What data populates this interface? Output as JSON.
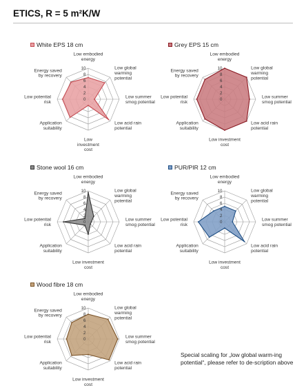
{
  "page": {
    "title": "ETICS, R = 5 m²K/W",
    "note": "Special scaling for „low global warm-ing potential“, please refer to de-scription above"
  },
  "chart_data": [
    {
      "type": "radar",
      "title": "White EPS 18 cm",
      "color": "#e8a0a3",
      "stroke": "#c44b52",
      "axes": [
        "Low embodied energy",
        "Low global warming potential",
        "Low summer smog potential",
        "Low acid rain potential",
        "Low investment cost",
        "Application suitability",
        "Low potential risk",
        "Energy saved by recovery"
      ],
      "axis_labels": [
        [
          "Low embodied",
          "energy"
        ],
        [
          "Low global",
          "warming",
          "potential"
        ],
        [
          "Low summer",
          "smog potential"
        ],
        [
          "Low acid rain",
          "potential"
        ],
        [
          "Low",
          "investment",
          "cost"
        ],
        [
          "Application",
          "suitability"
        ],
        [
          "Low potential",
          "risk"
        ],
        [
          "Energy saved",
          "by recovery"
        ]
      ],
      "ticks": [
        "0",
        "2",
        "4",
        "6",
        "8",
        "10"
      ],
      "range": [
        0,
        10
      ],
      "values": [
        7,
        7.5,
        2,
        9.3,
        2,
        8.3,
        8.3,
        7.8
      ]
    },
    {
      "type": "radar",
      "title": "Grey EPS 15 cm",
      "color": "#c97b80",
      "stroke": "#8c1e26",
      "axes": [
        "Low embodied energy",
        "Low global warming potential",
        "Low summer smog potential",
        "Low acid rain potential",
        "Low investment cost",
        "Application suitability",
        "Low potential risk",
        "Energy saved by recovery"
      ],
      "axis_labels": [
        [
          "Low embodied",
          "energy"
        ],
        [
          "Low global",
          "warming",
          "potential"
        ],
        [
          "Low summer",
          "smog potential"
        ],
        [
          "Low acid rain",
          "potential"
        ],
        [
          "Low investment",
          "cost"
        ],
        [
          "Application",
          "suitability"
        ],
        [
          "Low potential",
          "risk"
        ],
        [
          "Energy saved",
          "by recovery"
        ]
      ],
      "ticks": [
        "0",
        "2",
        "4",
        "6",
        "8",
        "10"
      ],
      "range": [
        0,
        10
      ],
      "values": [
        10,
        10,
        8,
        10,
        10,
        9,
        9,
        9
      ]
    },
    {
      "type": "radar",
      "title": "Stone wool 16 cm",
      "color": "#8c8c8c",
      "stroke": "#333333",
      "axes": [
        "Low embodied energy",
        "Low global warming potential",
        "Low summer smog potential",
        "Low acid rain potential",
        "Low investment cost",
        "Application suitability",
        "Low potential risk",
        "Energy saved by recovery"
      ],
      "axis_labels": [
        [
          "Low embodied",
          "energy"
        ],
        [
          "Low global",
          "warming",
          "potential"
        ],
        [
          "Low summer",
          "smog potential"
        ],
        [
          "Low acid rain",
          "potential"
        ],
        [
          "Low investment",
          "cost"
        ],
        [
          "Application",
          "suitability"
        ],
        [
          "Low potential",
          "risk"
        ],
        [
          "Energy saved",
          "by recovery"
        ]
      ],
      "ticks": [
        "0",
        "2",
        "4",
        "6",
        "8",
        "10"
      ],
      "range": [
        0,
        10
      ],
      "values": [
        9.5,
        2.5,
        1,
        1,
        4,
        1.5,
        8,
        1.5
      ]
    },
    {
      "type": "radar",
      "title": "PUR/PIR 12 cm",
      "color": "#7f9ec6",
      "stroke": "#1f4f85",
      "axes": [
        "Low embodied energy",
        "Low global warming potential",
        "Low summer smog potential",
        "Low acid rain potential",
        "Low investment cost",
        "Application suitability",
        "Low potential risk",
        "Energy saved by recovery"
      ],
      "axis_labels": [
        [
          "Low embodied",
          "energy"
        ],
        [
          "Low global",
          "warming",
          "potential"
        ],
        [
          "Low summer",
          "smog potential"
        ],
        [
          "Low acid rain",
          "potential"
        ],
        [
          "Low investment",
          "cost"
        ],
        [
          "Application",
          "suitability"
        ],
        [
          "Low potential",
          "risk"
        ],
        [
          "Energy saved",
          "by recovery"
        ]
      ],
      "ticks": [
        "0",
        "2",
        "4",
        "6",
        "8",
        "10"
      ],
      "range": [
        0,
        10
      ],
      "values": [
        5,
        5,
        2.5,
        9,
        2,
        7,
        8.5,
        5
      ]
    },
    {
      "type": "radar",
      "title": "Wood fibre 18 cm",
      "color": "#c2a27c",
      "stroke": "#7a5226",
      "axes": [
        "Low embodied energy",
        "Low global warming potential",
        "Low summer smog potential",
        "Low acid rain potential",
        "Low investment cost",
        "Application suitability",
        "Low potential risk",
        "Energy saved by recovery"
      ],
      "axis_labels": [
        [
          "Low embodied",
          "energy"
        ],
        [
          "Low global",
          "warming",
          "potential"
        ],
        [
          "Low summer",
          "smog potential"
        ],
        [
          "Low acid rain",
          "potential"
        ],
        [
          "Low investment",
          "cost"
        ],
        [
          "Application",
          "suitability"
        ],
        [
          "Low potential",
          "risk"
        ],
        [
          "Energy saved",
          "by recovery"
        ]
      ],
      "ticks": [
        "0",
        "2",
        "4",
        "6",
        "8",
        "10"
      ],
      "range": [
        0,
        10
      ],
      "values": [
        8,
        9,
        9.5,
        9.5,
        5,
        7.5,
        7,
        7.5
      ]
    }
  ]
}
